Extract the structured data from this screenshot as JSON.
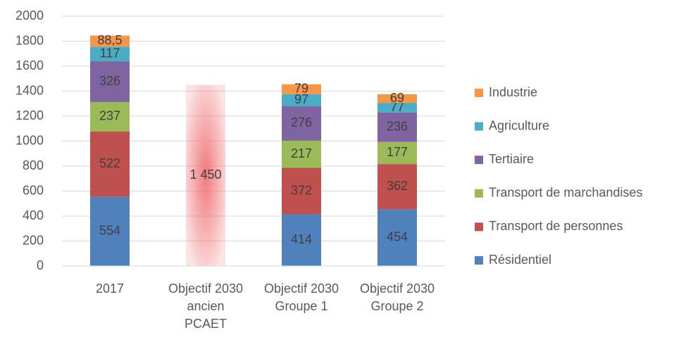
{
  "chart_data": {
    "type": "bar",
    "stacked": true,
    "categories": [
      "2017",
      "Objectif 2030 ancien PCAET",
      "Objectif 2030 Groupe 1",
      "Objectif 2030 Groupe 2"
    ],
    "series": [
      {
        "name": "Résidentiel",
        "color": "#4f81bd",
        "values": [
          554,
          null,
          414,
          454
        ]
      },
      {
        "name": "Transport de personnes",
        "color": "#c0504d",
        "values": [
          522,
          null,
          372,
          362
        ]
      },
      {
        "name": "Transport de marchandises",
        "color": "#9bbb59",
        "values": [
          237,
          null,
          217,
          177
        ]
      },
      {
        "name": "Tertiaire",
        "color": "#8064a2",
        "values": [
          326,
          null,
          276,
          236
        ]
      },
      {
        "name": "Agriculture",
        "color": "#4bacc6",
        "values": [
          117,
          null,
          97,
          77
        ]
      },
      {
        "name": "Industrie",
        "color": "#f79646",
        "values": [
          88.5,
          null,
          79,
          69
        ],
        "value_labels": [
          "88,5",
          null,
          "79",
          "69"
        ]
      }
    ],
    "objective_values": [
      null,
      1450,
      null,
      null
    ],
    "objective_value_labels": [
      null,
      "1 450",
      null,
      null
    ],
    "objective_color": "#f07a7c",
    "ylim": [
      0,
      2000
    ],
    "yticks": [
      0,
      200,
      400,
      600,
      800,
      1000,
      1200,
      1400,
      1600,
      1800,
      2000
    ],
    "grid": true,
    "legend": "right"
  }
}
